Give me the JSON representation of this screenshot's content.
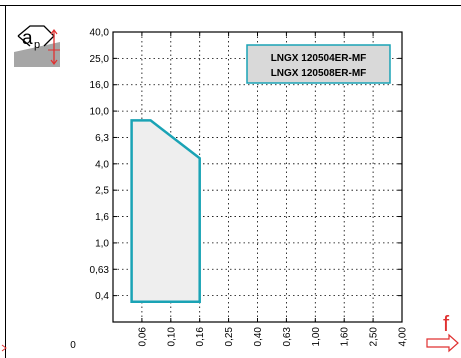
{
  "ap_label_main": "a",
  "ap_label_sub": "p",
  "f_label": "f",
  "colors": {
    "accent": "#1aa3b5",
    "region_fill": "#eeeeee",
    "legend_bg": "#d9d9d9",
    "grid": "#000000",
    "icon_gray": "#a6a6a6"
  },
  "icons": {
    "ap": "depth-of-cut-icon",
    "f": "feed-arrow-icon"
  },
  "chart_data": {
    "type": "area",
    "grid": true,
    "x_ticks": [
      "0",
      "0,06",
      "0,10",
      "0,16",
      "0,25",
      "0,40",
      "0,63",
      "1,00",
      "1,60",
      "2,50",
      "4,00"
    ],
    "y_ticks": [
      "40,0",
      "25,0",
      "16,0",
      "10,0",
      "6,3",
      "4,0",
      "2,5",
      "1,6",
      "1,0",
      "0,63",
      "0,4"
    ],
    "legend": [
      "LNGX 120504ER-MF",
      "LNGX 120508ER-MF"
    ],
    "legend_position": "top-right",
    "x_scale": "log (nonuniform tick labels, equal spacing)",
    "region": {
      "name": "LNGX 120504ER-MF / LNGX 120508ER-MF",
      "x": [
        0.05,
        0.05,
        0.07,
        0.16,
        0.16
      ],
      "y": [
        0.36,
        8.5,
        8.5,
        4.4,
        0.36
      ]
    }
  }
}
